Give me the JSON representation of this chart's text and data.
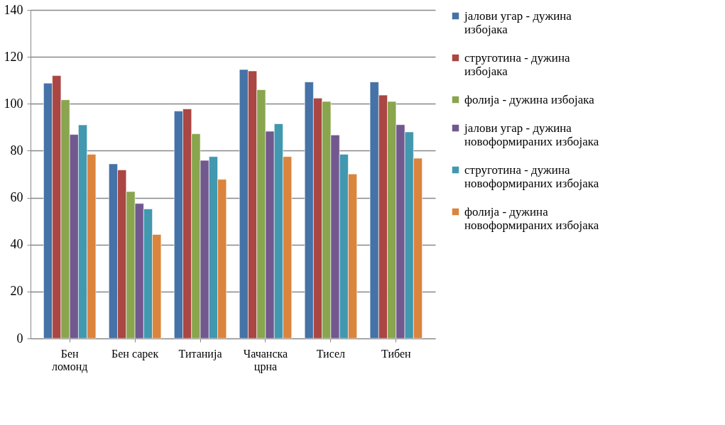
{
  "chart_data": {
    "type": "bar",
    "categories": [
      "Бен ломонд",
      "Бен сарек",
      "Титанија",
      "Чачанска црна",
      "Тисел",
      "Тибен"
    ],
    "series": [
      {
        "name": "јалови угар - дужина избојака",
        "color": "#4572a7",
        "values": [
          108.8,
          74.4,
          96.9,
          114.6,
          109.3,
          109.3
        ]
      },
      {
        "name": "струготина - дужина избојака",
        "color": "#aa4643",
        "values": [
          112.0,
          71.8,
          97.8,
          114.0,
          102.4,
          103.7
        ]
      },
      {
        "name": "фолија - дужина избојака",
        "color": "#89a54e",
        "values": [
          101.7,
          62.6,
          87.2,
          106.0,
          101.0,
          101.0
        ]
      },
      {
        "name": "јалови угар - дужина новоформираних избојака",
        "color": "#71588f",
        "values": [
          86.9,
          57.5,
          75.9,
          88.3,
          86.7,
          91.1
        ]
      },
      {
        "name": "струготина - дужина новоформираних избојака",
        "color": "#4198af",
        "values": [
          91.0,
          55.2,
          77.5,
          91.5,
          78.5,
          88.0
        ]
      },
      {
        "name": "фолија - дужина новоформираних избојака",
        "color": "#db843d",
        "values": [
          78.5,
          44.3,
          67.8,
          77.5,
          70.1,
          76.8
        ]
      }
    ],
    "ylim": [
      0,
      140
    ],
    "yticks": [
      0,
      20,
      40,
      60,
      80,
      100,
      120,
      140
    ],
    "grid": "y",
    "legend": "right"
  }
}
